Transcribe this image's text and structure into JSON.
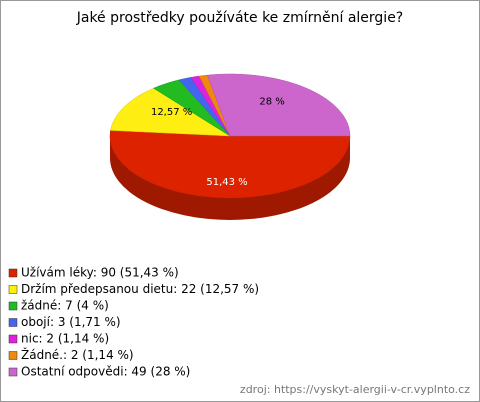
{
  "chart_data": {
    "type": "pie",
    "title": "Jaké prostředky používáte ke zmírnění alergie?",
    "categories": [
      "Užívám léky: 90 (51,43 %)",
      "Držím předepsanou dietu: 22 (12,57 %)",
      "žádné: 7 (4 %)",
      "obojí: 3 (1,71 %)",
      "nic: 2 (1,14 %)",
      "Žádné.: 2 (1,14 %)",
      "Ostatní odpovědi: 49 (28 %)"
    ],
    "values": [
      51.43,
      12.57,
      4,
      1.71,
      1.14,
      1.14,
      28
    ],
    "value_labels": [
      "51,43 %",
      "12,57 %",
      null,
      null,
      null,
      null,
      "28 %"
    ],
    "colors": [
      "#dd2200",
      "#ffee11",
      "#22bb22",
      "#4466ee",
      "#dd22dd",
      "#ee8811",
      "#cc66cc"
    ],
    "source": "zdroj: https://vyskyt-alergii-v-cr.vyplnto.cz"
  }
}
